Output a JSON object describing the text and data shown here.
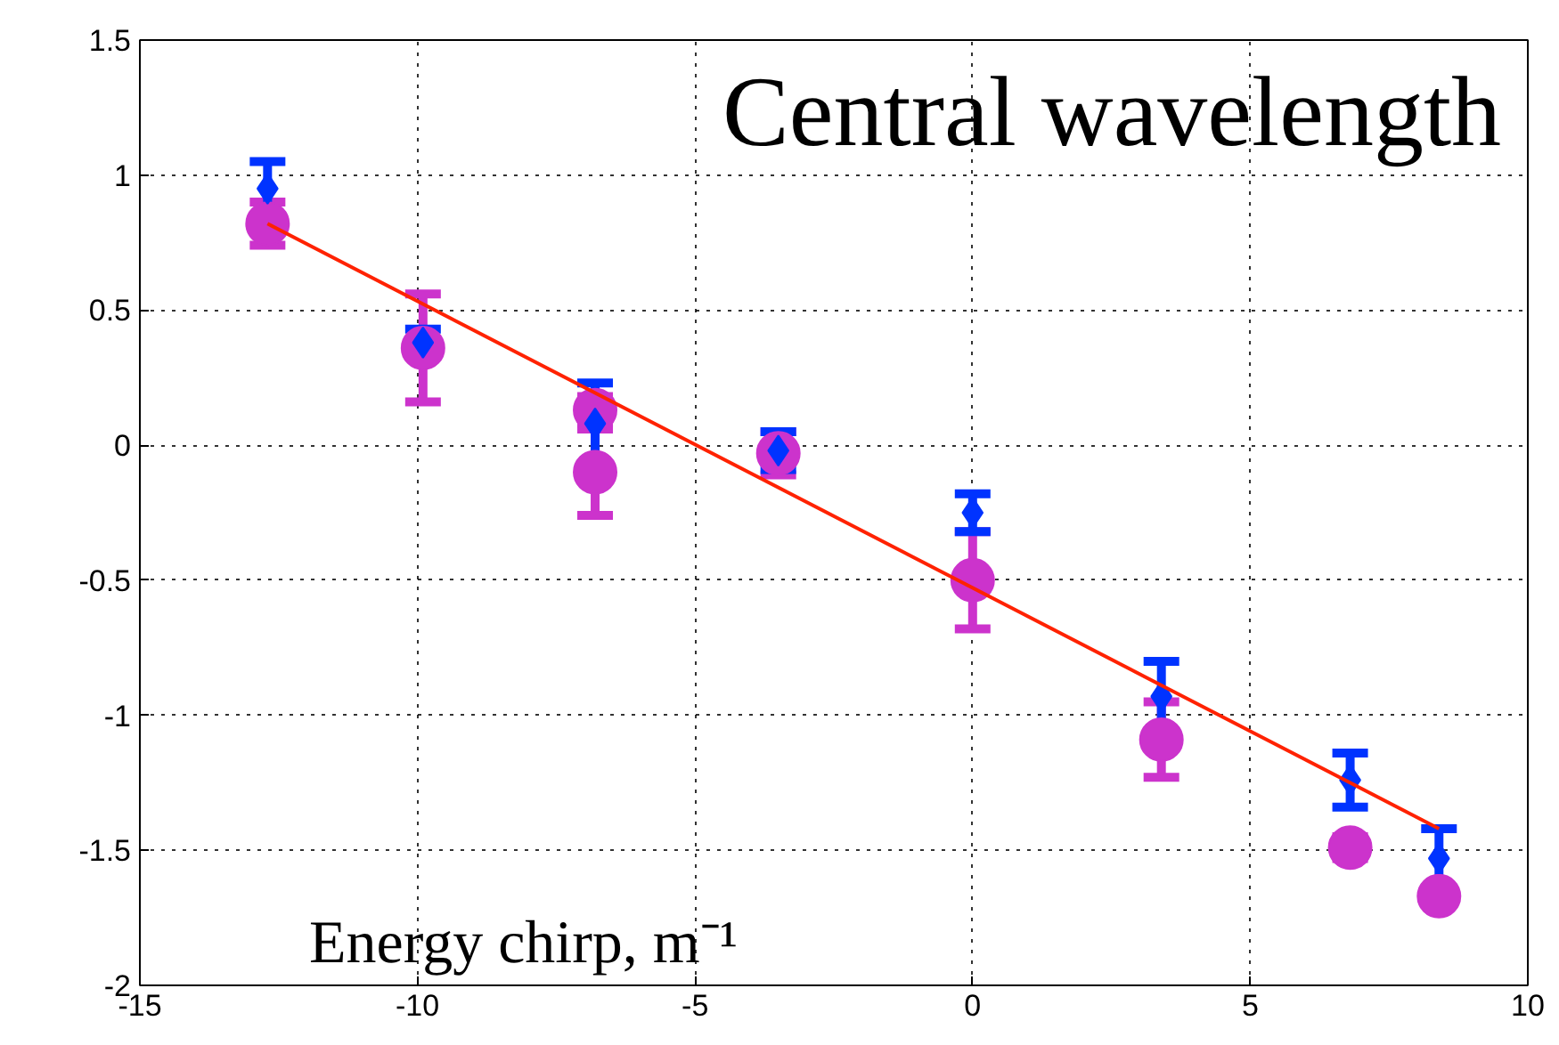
{
  "chart_data": {
    "type": "scatter",
    "title": "Central wavelength",
    "xlabel": "Energy chirp, m⁻¹",
    "xlim": [
      -15,
      10
    ],
    "xticks": [
      -15,
      -10,
      -5,
      0,
      5,
      10
    ],
    "ylim": [
      -2,
      1.5
    ],
    "yticks": [
      -2,
      -1.5,
      -1,
      -0.5,
      0,
      0.5,
      1,
      1.5
    ],
    "grid": true,
    "series": [
      {
        "color": "#cc33cc",
        "marker": "circle",
        "x": [
          -12.7,
          -9.9,
          -6.8,
          -6.8,
          -3.5,
          0,
          3.4,
          6.8,
          8.4
        ],
        "values": [
          0.82,
          0.36,
          0.13,
          -0.1,
          -0.03,
          -0.5,
          -1.09,
          -1.49,
          -1.67
        ],
        "errors": [
          0.08,
          0.2,
          0.05,
          0.16,
          0.08,
          0.18,
          0.14,
          0.04,
          0.03
        ]
      },
      {
        "color": "#0033ff",
        "marker": "diamond",
        "x": [
          -12.7,
          -9.9,
          -6.8,
          -3.5,
          0,
          3.4,
          6.8,
          8.4
        ],
        "values": [
          0.95,
          0.38,
          0.08,
          -0.02,
          -0.25,
          -0.93,
          -1.24,
          -1.53
        ],
        "errors": [
          0.1,
          0.05,
          0.15,
          0.07,
          0.07,
          0.13,
          0.1,
          0.11
        ]
      },
      {
        "type": "line",
        "color": "#ff2200",
        "marker": "none",
        "x": [
          -12.7,
          8.4
        ],
        "values": [
          0.82,
          -1.42
        ]
      }
    ]
  }
}
